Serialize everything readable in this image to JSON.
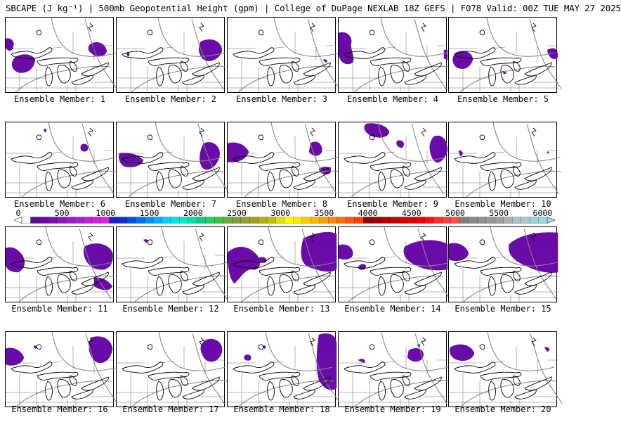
{
  "title": "SBCAPE (J kg⁻¹) | 500mb Geopotential Height (gpm) | College of DuPage NEXLAB 18Z GEFS | F078 Valid: 00Z TUE MAY 27 2025",
  "members": [
    {
      "label": "Ensemble Member: 1"
    },
    {
      "label": "Ensemble Member: 2"
    },
    {
      "label": "Ensemble Member: 3"
    },
    {
      "label": "Ensemble Member: 4"
    },
    {
      "label": "Ensemble Member: 5"
    },
    {
      "label": "Ensemble Member: 6"
    },
    {
      "label": "Ensemble Member: 7"
    },
    {
      "label": "Ensemble Member: 8"
    },
    {
      "label": "Ensemble Member: 9"
    },
    {
      "label": "Ensemble Member: 10"
    },
    {
      "label": "Ensemble Member: 11"
    },
    {
      "label": "Ensemble Member: 12"
    },
    {
      "label": "Ensemble Member: 13"
    },
    {
      "label": "Ensemble Member: 14"
    },
    {
      "label": "Ensemble Member: 15"
    },
    {
      "label": "Ensemble Member: 16"
    },
    {
      "label": "Ensemble Member: 17"
    },
    {
      "label": "Ensemble Member: 18"
    },
    {
      "label": "Ensemble Member: 19"
    },
    {
      "label": "Ensemble Member: 20"
    }
  ],
  "colorbar": {
    "labels": [
      "0",
      "500",
      "1000",
      "1500",
      "2000",
      "2500",
      "3000",
      "3500",
      "4000",
      "4500",
      "5000",
      "5500",
      "6000"
    ],
    "colors": [
      "#ffffff",
      "#5a0a8c",
      "#6a0aa0",
      "#7a10b0",
      "#8a16bc",
      "#9a1ec8",
      "#aa20d0",
      "#c020d8",
      "#d020d8",
      "#e020e0",
      "#2020c0",
      "#1030d0",
      "#0050e0",
      "#0070f0",
      "#0090ff",
      "#00b0ff",
      "#00d0ff",
      "#00e0e0",
      "#00e8c0",
      "#00e0a0",
      "#00d080",
      "#20d060",
      "#40c040",
      "#60b040",
      "#80a040",
      "#90a030",
      "#a0a020",
      "#b0b010",
      "#c0c000",
      "#e0e000",
      "#ffff00",
      "#ffe800",
      "#ffd000",
      "#ffb800",
      "#ffa000",
      "#ff8800",
      "#ff7000",
      "#ff5800",
      "#ff4000",
      "#900000",
      "#a00000",
      "#b00000",
      "#c00000",
      "#d00000",
      "#e00000",
      "#f00000",
      "#ff1010",
      "#ff3030",
      "#ff4040",
      "#ff5050",
      "#808080",
      "#888888",
      "#909090",
      "#989898",
      "#a0a0a0",
      "#a8b0b0",
      "#b0c0c0",
      "#a8c8d0",
      "#a0d0d8",
      "#98d8e0"
    ]
  }
}
